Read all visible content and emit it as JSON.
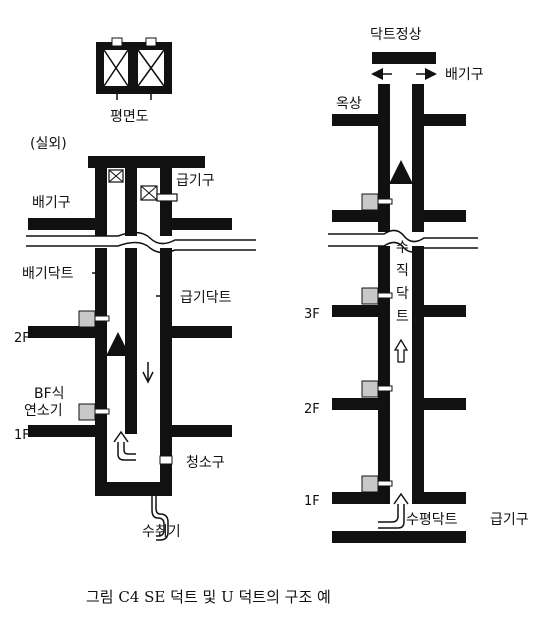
{
  "colors": {
    "structure": "#111111",
    "device": "#c8c8c8",
    "background": "#ffffff"
  },
  "left_diagram": {
    "plan_label": "평면도",
    "outdoor_label": "(실외)",
    "supply_inlet_label": "급기구",
    "exhaust_outlet_label": "배기구",
    "exhaust_duct_label": "배기닥트",
    "supply_duct_label": "급기닥트",
    "floor_2": "2F",
    "floor_1": "1F",
    "bf_heater_line1": "BF식",
    "bf_heater_line2": "연소기",
    "cleanout_label": "청소구",
    "drain_label": "수취기"
  },
  "right_diagram": {
    "duct_top_label": "닥트정상",
    "exhaust_outlet_label": "배기구",
    "roof_label": "옥상",
    "vertical_duct_chars": [
      "수",
      "직",
      "닥",
      "트"
    ],
    "floor_3": "3F",
    "floor_2": "2F",
    "floor_1": "1F",
    "horizontal_duct_label": "수평닥트",
    "supply_inlet_label": "급기구"
  },
  "caption": "그림 C4 SE 덕트 및 U 덕트의 구조 예"
}
